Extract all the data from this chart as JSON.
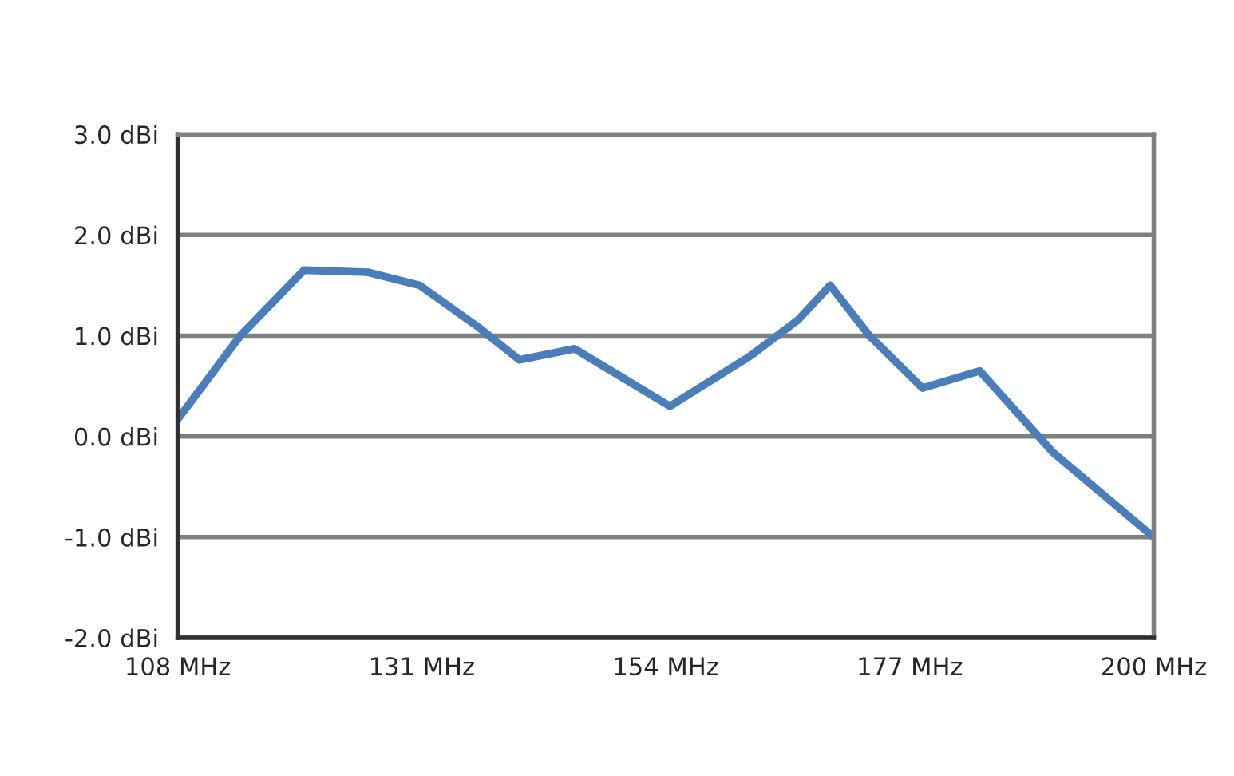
{
  "chart_data": {
    "type": "line",
    "x": [
      108,
      113.9,
      119.9,
      125.9,
      130.8,
      136.4,
      140.2,
      145.4,
      154.4,
      162.0,
      166.5,
      169.5,
      173.2,
      178.2,
      183.6,
      190.5,
      200
    ],
    "series": [
      {
        "color": "#4a7ebb",
        "values": [
          0.17,
          1.0,
          1.65,
          1.63,
          1.5,
          1.08,
          0.76,
          0.87,
          0.3,
          0.8,
          1.16,
          1.5,
          1.0,
          0.48,
          0.65,
          -0.16,
          -1.0
        ]
      }
    ],
    "xlim": [
      108,
      200
    ],
    "xticks": [
      {
        "value": 108,
        "label": "108 MHz"
      },
      {
        "value": 131,
        "label": "131 MHz"
      },
      {
        "value": 154,
        "label": "154 MHz"
      },
      {
        "value": 177,
        "label": "177 MHz"
      },
      {
        "value": 200,
        "label": "200 MHz"
      }
    ],
    "ylim": [
      -2,
      3
    ],
    "yticks": [
      {
        "value": -2,
        "label": "-2.0 dBi"
      },
      {
        "value": -1,
        "label": "-1.0 dBi"
      },
      {
        "value": 0,
        "label": "0.0 dBi"
      },
      {
        "value": 1,
        "label": "1.0 dBi"
      },
      {
        "value": 2,
        "label": "2.0 dBi"
      },
      {
        "value": 3,
        "label": "3.0 dBi"
      }
    ],
    "grid": "y",
    "marker": "none",
    "line_style": "solid",
    "legend": false
  }
}
